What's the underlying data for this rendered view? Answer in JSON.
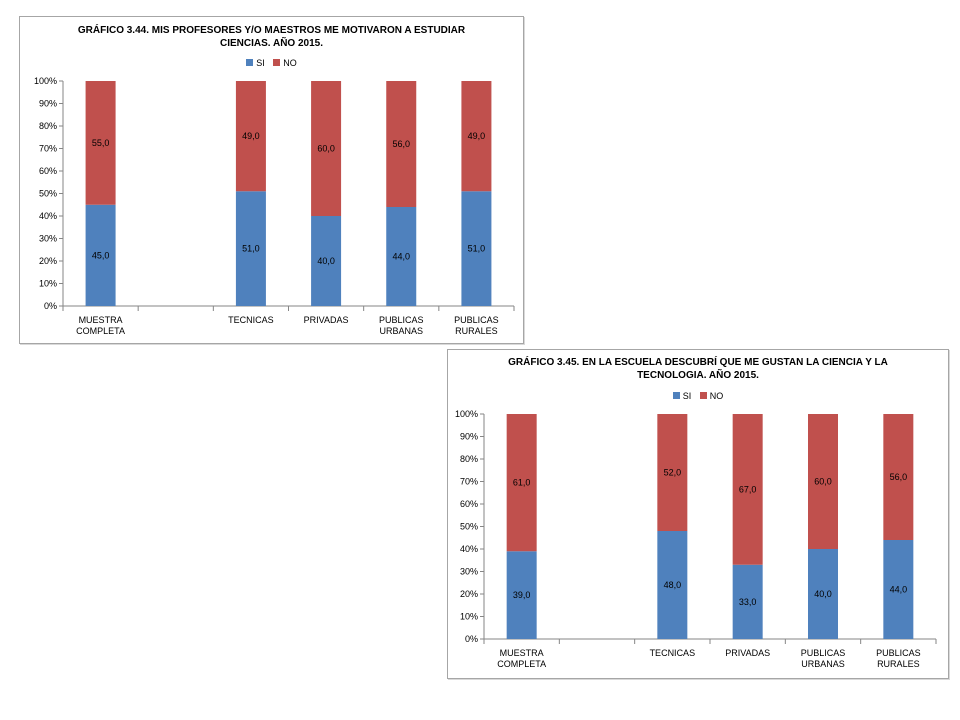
{
  "chart_data": [
    {
      "type": "bar",
      "stacked": true,
      "title": "GRÁFICO 3.44. MIS PROFESORES Y/O MAESTROS ME MOTIVARON A ESTUDIAR CIENCIAS.  AÑO 2015.",
      "title_lines": [
        "GRÁFICO 3.44. MIS PROFESORES Y/O MAESTROS ME MOTIVARON A ESTUDIAR",
        "CIENCIAS.  AÑO 2015."
      ],
      "categories": [
        [
          "MUESTRA",
          "COMPLETA"
        ],
        [
          ""
        ],
        [
          "TECNICAS"
        ],
        [
          "PRIVADAS"
        ],
        [
          "PUBLICAS",
          "URBANAS"
        ],
        [
          "PUBLICAS",
          "RURALES"
        ]
      ],
      "series": [
        {
          "name": "SI",
          "color": "#4f81bd",
          "values": [
            45.0,
            null,
            51.0,
            40.0,
            44.0,
            51.0
          ],
          "labels": [
            "45,0",
            "",
            "51,0",
            "40,0",
            "44,0",
            "51,0"
          ]
        },
        {
          "name": "NO",
          "color": "#c0504d",
          "values": [
            55.0,
            null,
            49.0,
            60.0,
            56.0,
            49.0
          ],
          "labels": [
            "55,0",
            "",
            "49,0",
            "60,0",
            "56,0",
            "49,0"
          ]
        }
      ],
      "yticks": [
        "0%",
        "10%",
        "20%",
        "30%",
        "40%",
        "50%",
        "60%",
        "70%",
        "80%",
        "90%",
        "100%"
      ],
      "ylim": [
        0,
        100
      ],
      "legend_position": "top",
      "grid": false
    },
    {
      "type": "bar",
      "stacked": true,
      "title": "GRÁFICO 3.45. EN  LA ESCUELA DESCUBRÍ QUE ME GUSTAN LA CIENCIA Y LA TECNOLOGIA. AÑO 2015.",
      "title_lines": [
        "GRÁFICO 3.45. EN  LA ESCUELA DESCUBRÍ QUE ME GUSTAN LA CIENCIA Y LA",
        "TECNOLOGIA. AÑO 2015."
      ],
      "categories": [
        [
          "MUESTRA",
          "COMPLETA"
        ],
        [
          ""
        ],
        [
          "TECNICAS"
        ],
        [
          "PRIVADAS"
        ],
        [
          "PUBLICAS",
          "URBANAS"
        ],
        [
          "PUBLICAS",
          "RURALES"
        ]
      ],
      "series": [
        {
          "name": "SI",
          "color": "#4f81bd",
          "values": [
            39.0,
            null,
            48.0,
            33.0,
            40.0,
            44.0
          ],
          "labels": [
            "39,0",
            "",
            "48,0",
            "33,0",
            "40,0",
            "44,0"
          ]
        },
        {
          "name": "NO",
          "color": "#c0504d",
          "values": [
            61.0,
            null,
            52.0,
            67.0,
            60.0,
            56.0
          ],
          "labels": [
            "61,0",
            "",
            "52,0",
            "67,0",
            "60,0",
            "56,0"
          ]
        }
      ],
      "yticks": [
        "0%",
        "10%",
        "20%",
        "30%",
        "40%",
        "50%",
        "60%",
        "70%",
        "80%",
        "90%",
        "100%"
      ],
      "ylim": [
        0,
        100
      ],
      "legend_position": "top",
      "grid": false
    }
  ]
}
